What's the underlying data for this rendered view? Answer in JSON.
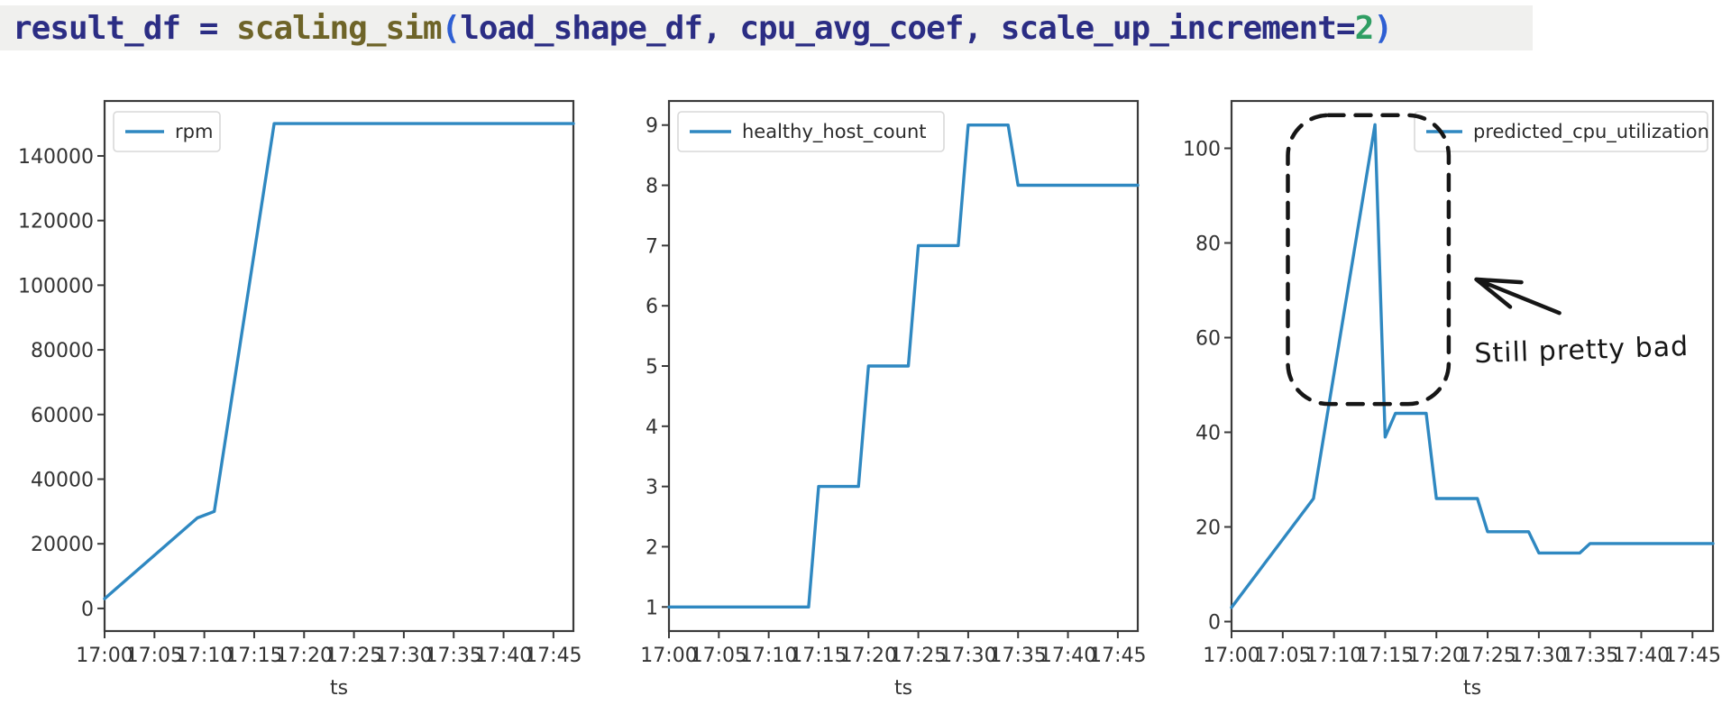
{
  "code": {
    "background": "#f0f0ee",
    "tokens": [
      {
        "text": "result_df",
        "color": "#2b2d84"
      },
      {
        "text": " = ",
        "color": "#2b2d84"
      },
      {
        "text": "scaling_sim",
        "color": "#6e6428"
      },
      {
        "text": "(",
        "color": "#2e5fd3"
      },
      {
        "text": "load_shape_df",
        "color": "#2b2d84"
      },
      {
        "text": ", ",
        "color": "#2b2d84"
      },
      {
        "text": "cpu_avg_coef",
        "color": "#2b2d84"
      },
      {
        "text": ", ",
        "color": "#2b2d84"
      },
      {
        "text": "scale_up_increment",
        "color": "#2b2d84"
      },
      {
        "text": "=",
        "color": "#2b2d84"
      },
      {
        "text": "2",
        "color": "#2f9e63"
      },
      {
        "text": ")",
        "color": "#2e5fd3"
      }
    ]
  },
  "colors": {
    "line": "#2f88c1",
    "spine": "#3a3a3a",
    "legend_border": "#d9d9d9",
    "legend_fill": "#ffffff",
    "annotation": "#161616"
  },
  "chart_data": [
    {
      "type": "line",
      "legend": "rpm",
      "legend_loc": "upper-left",
      "xlabel": "ts",
      "x_unit": "minutes-after-17:00",
      "xlim": [
        0,
        47
      ],
      "ylim": [
        -7000,
        157000
      ],
      "xticks": [
        {
          "m": 0,
          "label": "17:00"
        },
        {
          "m": 5,
          "label": "17:05"
        },
        {
          "m": 10,
          "label": "17:10"
        },
        {
          "m": 15,
          "label": "17:15"
        },
        {
          "m": 20,
          "label": "17:20"
        },
        {
          "m": 25,
          "label": "17:25"
        },
        {
          "m": 30,
          "label": "17:30"
        },
        {
          "m": 35,
          "label": "17:35"
        },
        {
          "m": 40,
          "label": "17:40"
        },
        {
          "m": 45,
          "label": "17:45"
        }
      ],
      "yticks": [
        {
          "v": 0,
          "label": "0"
        },
        {
          "v": 20000,
          "label": "20000"
        },
        {
          "v": 40000,
          "label": "40000"
        },
        {
          "v": 60000,
          "label": "60000"
        },
        {
          "v": 80000,
          "label": "80000"
        },
        {
          "v": 100000,
          "label": "100000"
        },
        {
          "v": 120000,
          "label": "120000"
        },
        {
          "v": 140000,
          "label": "140000"
        }
      ],
      "series": [
        {
          "name": "rpm",
          "points": [
            [
              0,
              3000
            ],
            [
              9.3,
              28000
            ],
            [
              11,
              30000
            ],
            [
              17,
              150000
            ],
            [
              47,
              150000
            ]
          ]
        }
      ]
    },
    {
      "type": "line",
      "legend": "healthy_host_count",
      "legend_loc": "upper-left",
      "xlabel": "ts",
      "x_unit": "minutes-after-17:00",
      "xlim": [
        0,
        47
      ],
      "ylim": [
        0.6,
        9.4
      ],
      "xticks": [
        {
          "m": 0,
          "label": "17:00"
        },
        {
          "m": 5,
          "label": "17:05"
        },
        {
          "m": 10,
          "label": "17:10"
        },
        {
          "m": 15,
          "label": "17:15"
        },
        {
          "m": 20,
          "label": "17:20"
        },
        {
          "m": 25,
          "label": "17:25"
        },
        {
          "m": 30,
          "label": "17:30"
        },
        {
          "m": 35,
          "label": "17:35"
        },
        {
          "m": 40,
          "label": "17:40"
        },
        {
          "m": 45,
          "label": "17:45"
        }
      ],
      "yticks": [
        {
          "v": 1,
          "label": "1"
        },
        {
          "v": 2,
          "label": "2"
        },
        {
          "v": 3,
          "label": "3"
        },
        {
          "v": 4,
          "label": "4"
        },
        {
          "v": 5,
          "label": "5"
        },
        {
          "v": 6,
          "label": "6"
        },
        {
          "v": 7,
          "label": "7"
        },
        {
          "v": 8,
          "label": "8"
        },
        {
          "v": 9,
          "label": "9"
        }
      ],
      "series": [
        {
          "name": "healthy_host_count",
          "points": [
            [
              0,
              1
            ],
            [
              14,
              1
            ],
            [
              15,
              3
            ],
            [
              19,
              3
            ],
            [
              20,
              5
            ],
            [
              24,
              5
            ],
            [
              25,
              7
            ],
            [
              29,
              7
            ],
            [
              30,
              9
            ],
            [
              34,
              9
            ],
            [
              35,
              8
            ],
            [
              47,
              8
            ]
          ]
        }
      ]
    },
    {
      "type": "line",
      "legend": "predicted_cpu_utilization",
      "legend_loc": "upper-right",
      "xlabel": "ts",
      "x_unit": "minutes-after-17:00",
      "xlim": [
        0,
        47
      ],
      "ylim": [
        -2,
        110
      ],
      "xticks": [
        {
          "m": 0,
          "label": "17:00"
        },
        {
          "m": 5,
          "label": "17:05"
        },
        {
          "m": 10,
          "label": "17:10"
        },
        {
          "m": 15,
          "label": "17:15"
        },
        {
          "m": 20,
          "label": "17:20"
        },
        {
          "m": 25,
          "label": "17:25"
        },
        {
          "m": 30,
          "label": "17:30"
        },
        {
          "m": 35,
          "label": "17:35"
        },
        {
          "m": 40,
          "label": "17:40"
        },
        {
          "m": 45,
          "label": "17:45"
        }
      ],
      "yticks": [
        {
          "v": 0,
          "label": "0"
        },
        {
          "v": 20,
          "label": "20"
        },
        {
          "v": 40,
          "label": "40"
        },
        {
          "v": 60,
          "label": "60"
        },
        {
          "v": 80,
          "label": "80"
        },
        {
          "v": 100,
          "label": "100"
        }
      ],
      "series": [
        {
          "name": "predicted_cpu_utilization",
          "points": [
            [
              0,
              3
            ],
            [
              8,
              26
            ],
            [
              14,
              105
            ],
            [
              15,
              39
            ],
            [
              16,
              44
            ],
            [
              19,
              44
            ],
            [
              20,
              26
            ],
            [
              24,
              26
            ],
            [
              25,
              19
            ],
            [
              29,
              19
            ],
            [
              30,
              14.5
            ],
            [
              34,
              14.5
            ],
            [
              35,
              16.5
            ],
            [
              47,
              16.5
            ]
          ]
        }
      ],
      "annotation": {
        "box": {
          "x": [
            5.5,
            21.2
          ],
          "y": [
            46,
            107
          ],
          "radius": 45
        },
        "arrow": {
          "tip": [
            23.9,
            72.3
          ],
          "tail": [
            32,
            65.2
          ],
          "barbs": [
            [
              28.3,
              71.7
            ],
            [
              27.2,
              66.5
            ]
          ]
        },
        "label": {
          "text": "Still pretty bad",
          "x": 34.2,
          "y": 55.5
        }
      }
    }
  ]
}
